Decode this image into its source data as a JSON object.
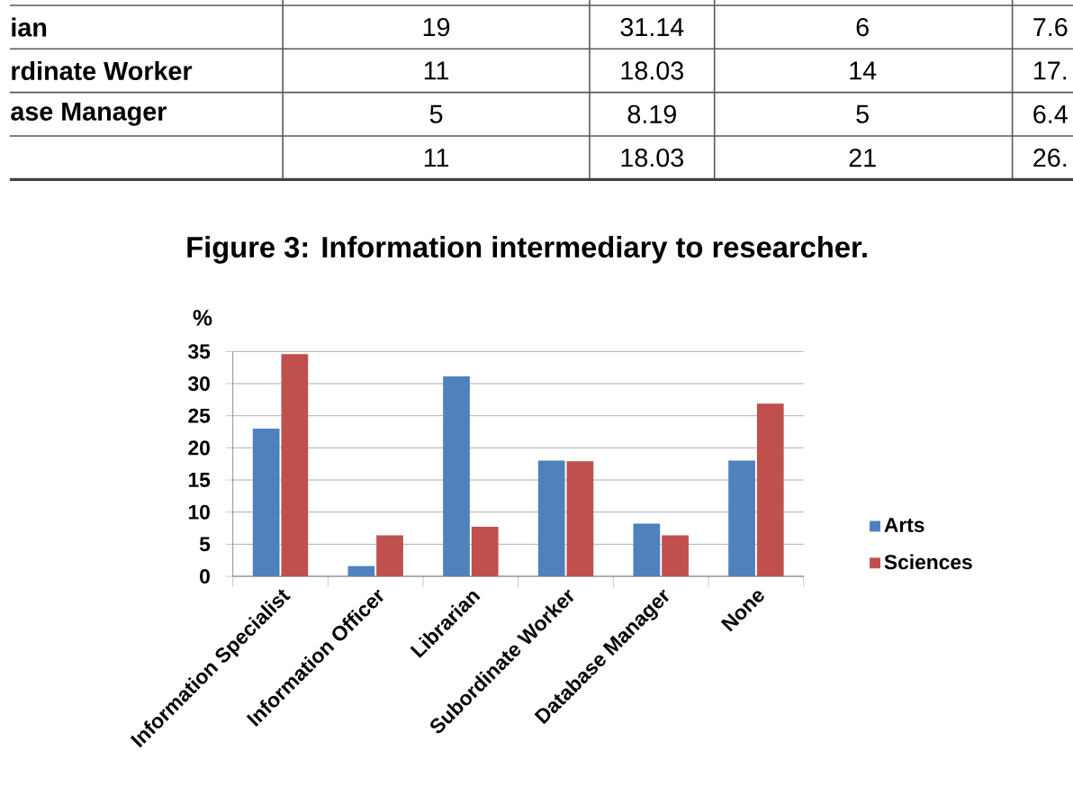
{
  "chart_data": {
    "type": "bar",
    "title": "Figure 3: Information intermediary to researcher.",
    "ylabel": "%",
    "categories": [
      "Information Specialist",
      "Information Officer",
      "Librarian",
      "Subordinate Worker",
      "Database Manager",
      "None"
    ],
    "series": [
      {
        "name": "Arts",
        "color": "#4f81bd",
        "values": [
          23,
          1.6,
          31.14,
          18.03,
          8.19,
          18.03
        ]
      },
      {
        "name": "Sciences",
        "color": "#c0504d",
        "values": [
          34.6,
          6.4,
          7.7,
          17.9,
          6.4,
          26.9
        ]
      }
    ],
    "ylim": [
      0,
      35
    ],
    "yticks": [
      0,
      5,
      10,
      15,
      20,
      25,
      30,
      35
    ],
    "grid": "y",
    "legend": "right",
    "annotations": [
      "ian",
      "19",
      "31.14",
      "6",
      "7.6",
      "rdinate Worker",
      "11",
      "18.03",
      "14",
      "17.",
      "ase Manager",
      "5",
      "8.19",
      "5",
      "6.4",
      "11",
      "18.03",
      "21",
      "26."
    ]
  }
}
